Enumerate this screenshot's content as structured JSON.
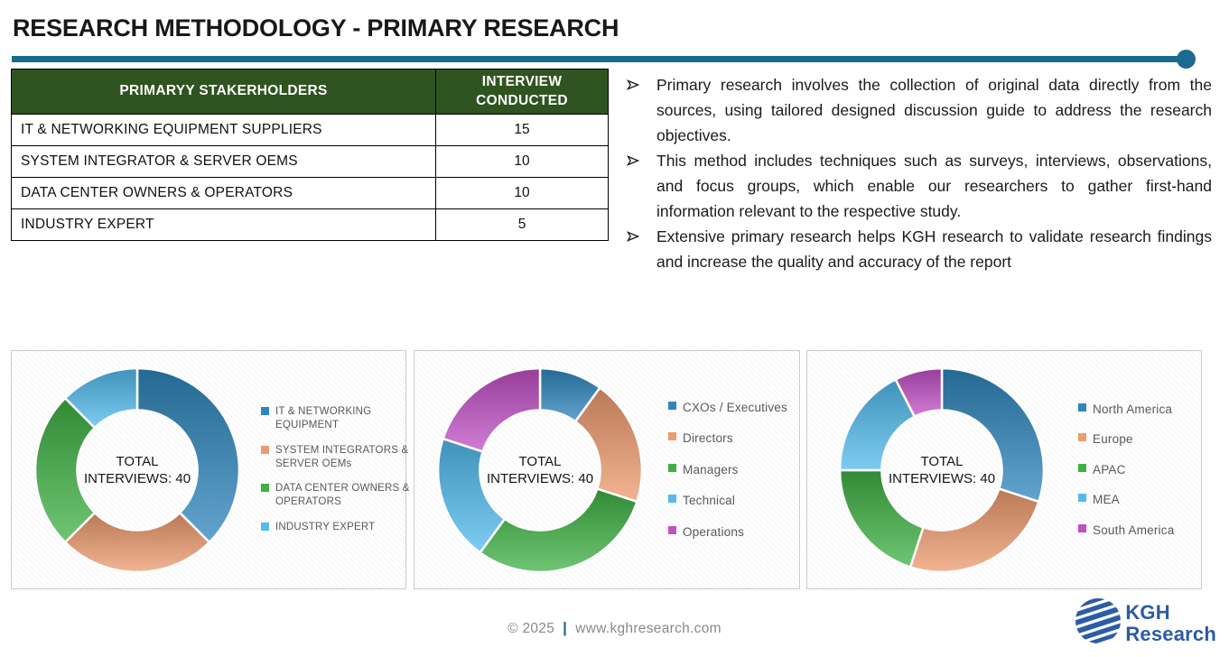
{
  "title": "RESEARCH METHODOLOGY - PRIMARY RESEARCH",
  "colors": {
    "divider_teal": "#1B6A8F",
    "table_header_green": "#2F5420",
    "logo_blue": "#2B5CA6",
    "legend_text": "#595959",
    "footer_text": "#8A8A8A"
  },
  "table": {
    "headers": [
      "PRIMARYY STAKERHOLDERS",
      "INTERVIEW CONDUCTED"
    ],
    "rows": [
      {
        "stakeholder": "IT & NETWORKING EQUIPMENT SUPPLIERS",
        "interviews": "15"
      },
      {
        "stakeholder": "SYSTEM INTEGRATOR & SERVER OEMS",
        "interviews": "10"
      },
      {
        "stakeholder": "DATA CENTER OWNERS & OPERATORS",
        "interviews": "10"
      },
      {
        "stakeholder": "INDUSTRY EXPERT",
        "interviews": "5"
      }
    ]
  },
  "bullets": [
    "Primary research involves the collection of original data directly from the sources, using tailored designed discussion guide to address the research objectives.",
    "This method includes techniques such as surveys, interviews, observations, and focus groups, which enable our researchers to gather first-hand information relevant to the respective study.",
    "Extensive primary research helps KGH research to validate research findings and increase the quality and accuracy of the report"
  ],
  "chart_data": [
    {
      "type": "pie",
      "subtype": "donut",
      "center_label": "TOTAL INTERVIEWS: 40",
      "total_interviews": 40,
      "labels": [
        "IT & NETWORKING EQUIPMENT",
        "SYSTEM INTEGRATORS & SERVER OEMs",
        "DATA CENTER OWNERS & OPERATORS",
        "INDUSTRY EXPERT"
      ],
      "values": [
        15,
        10,
        10,
        5
      ],
      "colors": [
        "#2E86BD",
        "#EE9B6F",
        "#3FB144",
        "#52BBEE"
      ],
      "legend_position": "right",
      "start_angle_deg": 0,
      "direction": "clockwise"
    },
    {
      "type": "pie",
      "subtype": "donut",
      "center_label": "TOTAL INTERVIEWS: 40",
      "total_interviews": 40,
      "labels": [
        "CXOs / Executives",
        "Directors",
        "Managers",
        "Technical",
        "Operations"
      ],
      "values": [
        4,
        8,
        12,
        8,
        8
      ],
      "colors": [
        "#2E86BD",
        "#EE9B6F",
        "#3FB144",
        "#52BBEE",
        "#C050C5"
      ],
      "legend_position": "right",
      "start_angle_deg": 0,
      "direction": "clockwise"
    },
    {
      "type": "pie",
      "subtype": "donut",
      "center_label": "TOTAL INTERVIEWS: 40",
      "total_interviews": 40,
      "labels": [
        "North America",
        "Europe",
        "APAC",
        "MEA",
        "South America"
      ],
      "values": [
        12,
        10,
        8,
        7,
        3
      ],
      "colors": [
        "#2E86BD",
        "#EE9B6F",
        "#3FB144",
        "#52BBEE",
        "#C050C5"
      ],
      "legend_position": "right",
      "start_angle_deg": 0,
      "direction": "clockwise"
    }
  ],
  "footer": {
    "copyright": "© 2025",
    "separator": "|",
    "website": "www.kghresearch.com",
    "logo_line1": "KGH",
    "logo_line2": "Research"
  }
}
